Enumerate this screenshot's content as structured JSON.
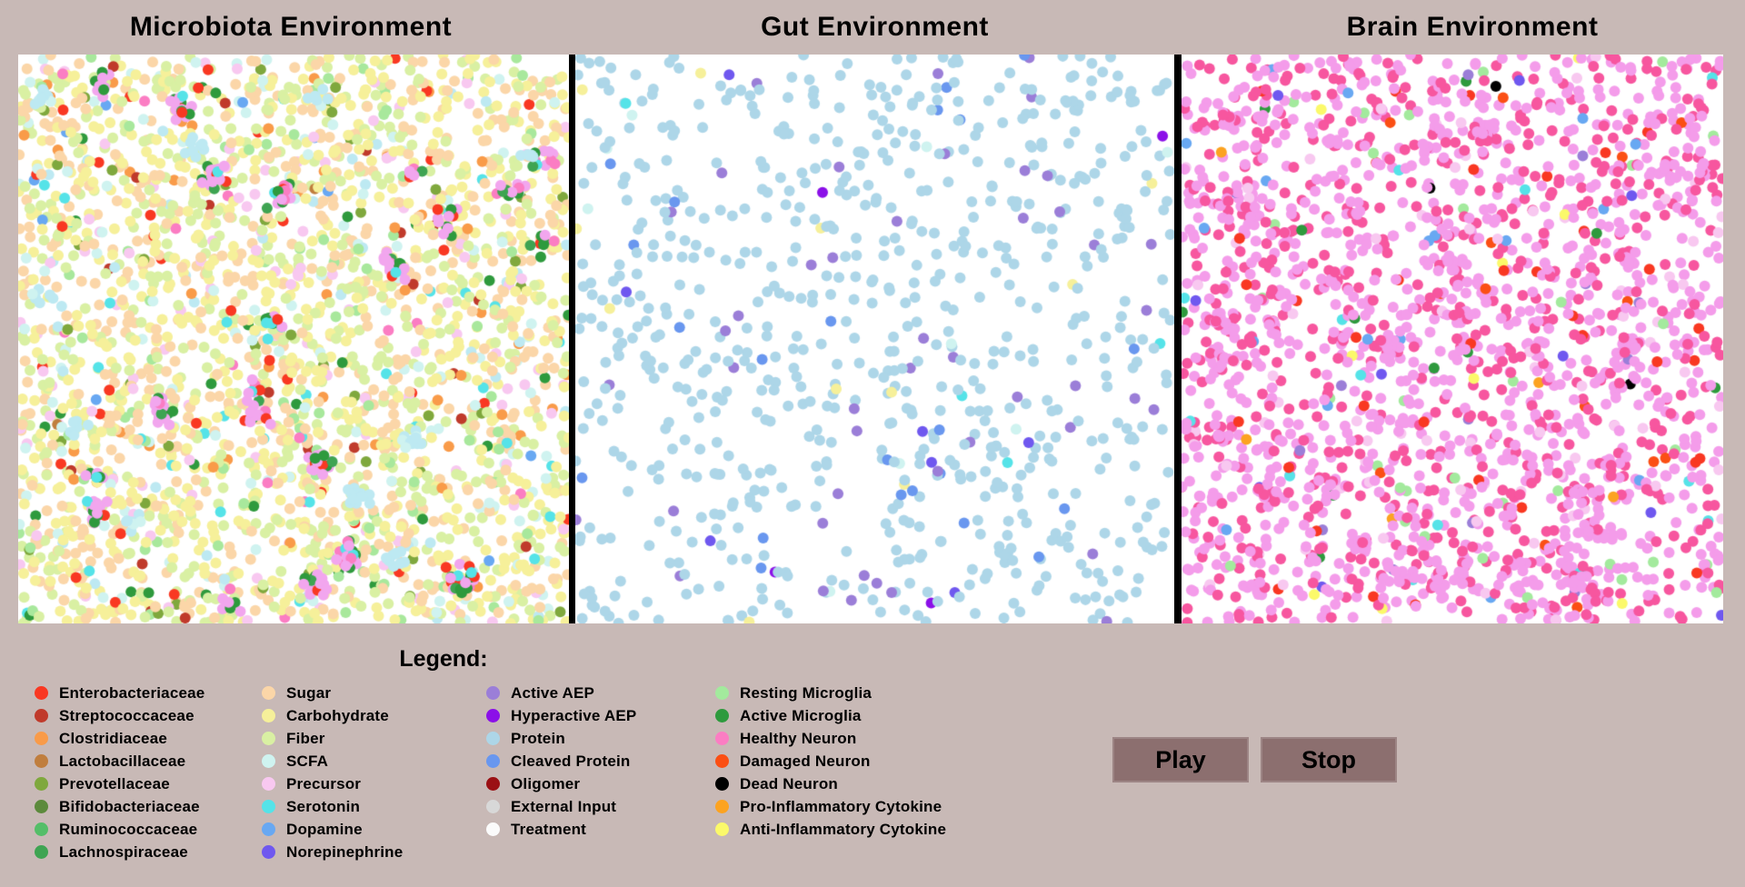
{
  "background_color": "#C8B9B6",
  "button_color": "#8C6F6F",
  "panels": [
    {
      "title": "Microbiota Environment",
      "dots": {
        "seed": 42,
        "count": 2600,
        "radius": 6,
        "mix": [
          {
            "color": "#F6F09A",
            "w": 0.27
          },
          {
            "color": "#FBD6A8",
            "w": 0.235
          },
          {
            "color": "#D9F0A3",
            "w": 0.215
          },
          {
            "color": "#CFF3F0",
            "w": 0.055
          },
          {
            "color": "#BDE9F2",
            "w": 0.02
          },
          {
            "color": "#F8C8F0",
            "w": 0.045
          },
          {
            "color": "#A8E89C",
            "w": 0.03
          },
          {
            "color": "#F99B49",
            "w": 0.02
          },
          {
            "color": "#F93822",
            "w": 0.014
          },
          {
            "color": "#2E9A3D",
            "w": 0.01
          },
          {
            "color": "#7FA83D",
            "w": 0.012
          },
          {
            "color": "#55E3E8",
            "w": 0.01
          },
          {
            "color": "#FB7DC3",
            "w": 0.006
          },
          {
            "color": "#C03A2B",
            "w": 0.005
          },
          {
            "color": "#68A8F2",
            "w": 0.004
          },
          {
            "color": "#C07E3E",
            "w": 0.004
          }
        ],
        "clusters": [
          {
            "count": 22,
            "min": 6,
            "max": 20,
            "spread": 18,
            "mix": [
              {
                "color": "#F2A6EE",
                "w": 0.5
              },
              {
                "color": "#2E9A3D",
                "w": 0.2
              },
              {
                "color": "#3EA452",
                "w": 0.08
              },
              {
                "color": "#F93822",
                "w": 0.08
              },
              {
                "color": "#55E3E8",
                "w": 0.07
              },
              {
                "color": "#FB7DC3",
                "w": 0.07
              }
            ]
          },
          {
            "count": 10,
            "min": 5,
            "max": 12,
            "spread": 15,
            "mix": [
              {
                "color": "#BDE9F2",
                "w": 0.85
              },
              {
                "color": "#CFF3F0",
                "w": 0.15
              }
            ]
          }
        ]
      }
    },
    {
      "title": "Gut Environment",
      "dots": {
        "seed": 7,
        "count": 830,
        "radius": 6,
        "mix": [
          {
            "color": "#ADD6E8",
            "w": 0.865
          },
          {
            "color": "#9B7ED8",
            "w": 0.065
          },
          {
            "color": "#6997EF",
            "w": 0.033
          },
          {
            "color": "#8B10E8",
            "w": 0.007
          },
          {
            "color": "#55E3E8",
            "w": 0.004
          },
          {
            "color": "#F6F09A",
            "w": 0.01
          },
          {
            "color": "#CFF3F0",
            "w": 0.01
          },
          {
            "color": "#6F58EF",
            "w": 0.006
          }
        ],
        "clusters": []
      }
    },
    {
      "title": "Brain Environment",
      "dots": {
        "seed": 99,
        "count": 1900,
        "radius": 6,
        "mix": [
          {
            "color": "#F49CEA",
            "w": 0.545
          },
          {
            "color": "#F7569F",
            "w": 0.295
          },
          {
            "color": "#F8C8F0",
            "w": 0.04
          },
          {
            "color": "#A3EA9D",
            "w": 0.022
          },
          {
            "color": "#2E9A3D",
            "w": 0.007
          },
          {
            "color": "#F93822",
            "w": 0.022
          },
          {
            "color": "#FB4F14",
            "w": 0.008
          },
          {
            "color": "#55E3E8",
            "w": 0.008
          },
          {
            "color": "#68A8F2",
            "w": 0.012
          },
          {
            "color": "#6F58EF",
            "w": 0.006
          },
          {
            "color": "#9B7ED8",
            "w": 0.008
          },
          {
            "color": "#000000",
            "w": 0.002
          },
          {
            "color": "#FBF96A",
            "w": 0.004
          },
          {
            "color": "#FCA321",
            "w": 0.003
          }
        ],
        "clusters": [
          {
            "count": 45,
            "min": 4,
            "max": 10,
            "spread": 14,
            "mix": [
              {
                "color": "#F49CEA",
                "w": 0.75
              },
              {
                "color": "#F7569F",
                "w": 0.25
              }
            ]
          }
        ]
      }
    }
  ],
  "legend": {
    "title": "Legend:",
    "columns": [
      [
        {
          "label": "Enterobacteriaceae",
          "color": "#F93822"
        },
        {
          "label": "Streptococcaceae",
          "color": "#C03A2B"
        },
        {
          "label": "Clostridiaceae",
          "color": "#F99B49"
        },
        {
          "label": "Lactobacillaceae",
          "color": "#C07E3E"
        },
        {
          "label": "Prevotellaceae",
          "color": "#7FA83D"
        },
        {
          "label": "Bifidobacteriaceae",
          "color": "#5C8A3C"
        },
        {
          "label": "Ruminococcaceae",
          "color": "#54BE68"
        },
        {
          "label": "Lachnospiraceae",
          "color": "#3EA452"
        }
      ],
      [
        {
          "label": "Sugar",
          "color": "#FBD6A8"
        },
        {
          "label": "Carbohydrate",
          "color": "#F6F09A"
        },
        {
          "label": "Fiber",
          "color": "#D9F0A3"
        },
        {
          "label": "SCFA",
          "color": "#CFF3F0"
        },
        {
          "label": "Precursor",
          "color": "#F8C8F0"
        },
        {
          "label": "Serotonin",
          "color": "#55E3E8"
        },
        {
          "label": "Dopamine",
          "color": "#68A8F2"
        },
        {
          "label": "Norepinephrine",
          "color": "#6F58EF"
        }
      ],
      [
        {
          "label": "Active AEP",
          "color": "#9B7ED8"
        },
        {
          "label": "Hyperactive AEP",
          "color": "#8B10E8"
        },
        {
          "label": "Protein",
          "color": "#ADD6E8"
        },
        {
          "label": "Cleaved Protein",
          "color": "#6997EF"
        },
        {
          "label": "Oligomer",
          "color": "#9B1014"
        },
        {
          "label": "External Input",
          "color": "#D8D8D8"
        },
        {
          "label": "Treatment",
          "color": "#FBFBFB"
        }
      ],
      [
        {
          "label": "Resting Microglia",
          "color": "#A3EA9D"
        },
        {
          "label": "Active Microglia",
          "color": "#2E9A3D"
        },
        {
          "label": "Healthy Neuron",
          "color": "#FB7DC3"
        },
        {
          "label": "Damaged Neuron",
          "color": "#FB4F14"
        },
        {
          "label": "Dead Neuron",
          "color": "#000000"
        },
        {
          "label": "Pro-Inflammatory Cytokine",
          "color": "#FCA321"
        },
        {
          "label": "Anti-Inflammatory Cytokine",
          "color": "#FBF96A"
        }
      ]
    ]
  },
  "controls": {
    "play_label": "Play",
    "stop_label": "Stop"
  }
}
